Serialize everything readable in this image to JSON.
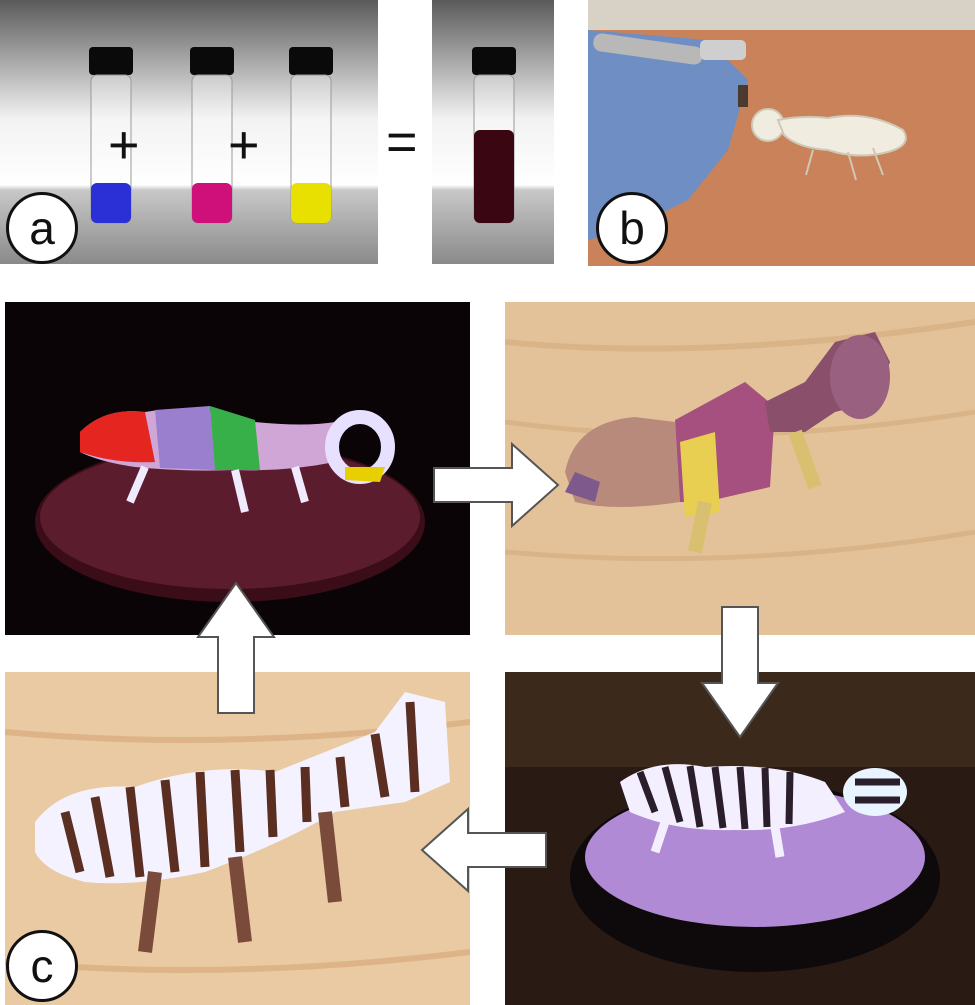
{
  "figure": {
    "labels": {
      "a": "a",
      "b": "b",
      "c": "c"
    },
    "operators": {
      "plus": "+",
      "equals": "="
    },
    "dye_colors": {
      "blue": "#2a2fd6",
      "magenta": "#d0107a",
      "yellow": "#e8e000",
      "mixed": "#3a0612"
    },
    "icons": [
      "vial-icon",
      "airbrush-icon",
      "chameleon-icon",
      "arrow-right-icon",
      "arrow-down-icon",
      "arrow-left-icon",
      "arrow-up-icon"
    ]
  }
}
